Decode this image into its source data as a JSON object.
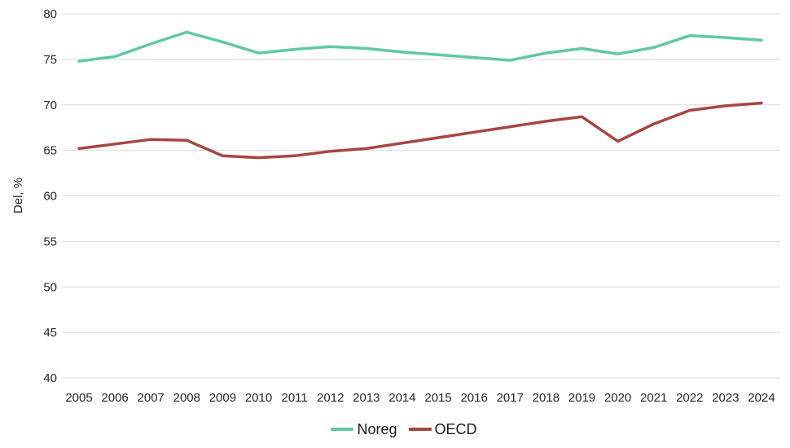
{
  "chart_data": {
    "type": "line",
    "title": "",
    "x": [
      "2005",
      "2006",
      "2007",
      "2008",
      "2009",
      "2010",
      "2011",
      "2012",
      "2013",
      "2014",
      "2015",
      "2016",
      "2017",
      "2018",
      "2019",
      "2020",
      "2021",
      "2022",
      "2023",
      "2024"
    ],
    "series": [
      {
        "name": "Noreg",
        "color": "#5EC9A4",
        "values": [
          74.8,
          75.3,
          76.7,
          78.0,
          76.9,
          75.7,
          76.1,
          76.4,
          76.2,
          75.8,
          75.5,
          75.2,
          74.9,
          75.7,
          76.2,
          75.6,
          76.3,
          77.6,
          77.4,
          77.1
        ]
      },
      {
        "name": "OECD",
        "color": "#A94440",
        "values": [
          65.2,
          65.7,
          66.2,
          66.1,
          64.4,
          64.2,
          64.4,
          64.9,
          65.2,
          65.8,
          66.4,
          67.0,
          67.6,
          68.2,
          68.7,
          66.0,
          67.9,
          69.4,
          69.9,
          70.2
        ]
      }
    ],
    "xlabel": "",
    "ylabel": "Del, %",
    "ylim": [
      40,
      80
    ],
    "yticks": [
      40,
      45,
      50,
      55,
      60,
      65,
      70,
      75,
      80
    ],
    "grid": "horizontal",
    "legend_position": "bottom"
  },
  "colors": {
    "gridline": "#D9D9D9",
    "axis_text": "#262626",
    "background": "#FFFFFF"
  }
}
